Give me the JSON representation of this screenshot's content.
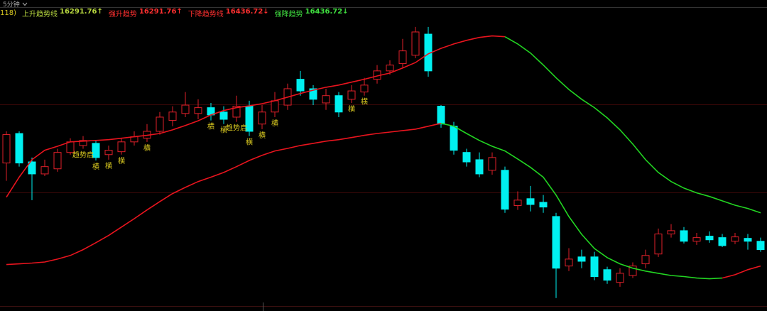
{
  "toolbar": {
    "period": "5分钟"
  },
  "chart_data": {
    "type": "candlestick",
    "indicator_param": "118)",
    "legend": [
      {
        "name": "上升趋势线",
        "value": 16291.76,
        "value_label": "16291.76↑",
        "color": "#b8d840"
      },
      {
        "name": "强升趋势",
        "value": 16291.76,
        "value_label": "16291.76↑",
        "color": "#ff3030"
      },
      {
        "name": "下降趋势线",
        "value": 16436.72,
        "value_label": "16436.72↓",
        "color": "#ff3030"
      },
      {
        "name": "强降趋势",
        "value": 16436.72,
        "value_label": "16436.72↓",
        "color": "#40e040"
      }
    ],
    "ylim": [
      16180,
      16970
    ],
    "up_color": "#e0202a",
    "down_color": "#00f0f0",
    "signal_color": "#d8c820",
    "open": [
      16571,
      16652,
      16574,
      16541,
      16555,
      16600,
      16619,
      16625,
      16594,
      16602,
      16629,
      16639,
      16658,
      16688,
      16707,
      16707,
      16723,
      16711,
      16697,
      16727,
      16678,
      16711,
      16730,
      16801,
      16775,
      16736,
      16756,
      16746,
      16766,
      16801,
      16824,
      16844,
      16867,
      16925,
      16727,
      16672,
      16600,
      16580,
      16551,
      16551,
      16454,
      16473,
      16463,
      16424,
      16288,
      16313,
      16313,
      16278,
      16243,
      16262,
      16294,
      16321,
      16376,
      16385,
      16356,
      16370,
      16366,
      16356,
      16364,
      16356
    ],
    "high": [
      16658,
      16658,
      16586,
      16580,
      16610,
      16639,
      16645,
      16633,
      16619,
      16639,
      16658,
      16678,
      16711,
      16727,
      16766,
      16746,
      16736,
      16727,
      16756,
      16742,
      16730,
      16766,
      16789,
      16824,
      16785,
      16775,
      16766,
      16785,
      16805,
      16840,
      16853,
      16912,
      16945,
      16945,
      16730,
      16684,
      16610,
      16600,
      16600,
      16561,
      16493,
      16508,
      16483,
      16434,
      16337,
      16333,
      16327,
      16286,
      16282,
      16298,
      16333,
      16391,
      16403,
      16395,
      16379,
      16383,
      16376,
      16379,
      16376,
      16366
    ],
    "low": [
      16522,
      16561,
      16469,
      16535,
      16547,
      16594,
      16610,
      16578,
      16580,
      16594,
      16619,
      16629,
      16649,
      16672,
      16697,
      16691,
      16688,
      16678,
      16684,
      16645,
      16664,
      16697,
      16717,
      16756,
      16730,
      16717,
      16697,
      16736,
      16756,
      16789,
      16814,
      16834,
      16859,
      16808,
      16668,
      16594,
      16561,
      16532,
      16539,
      16434,
      16442,
      16438,
      16434,
      16200,
      16274,
      16282,
      16249,
      16239,
      16231,
      16255,
      16282,
      16313,
      16366,
      16350,
      16346,
      16352,
      16340,
      16348,
      16333,
      16327
    ],
    "close": [
      16649,
      16571,
      16541,
      16561,
      16600,
      16629,
      16633,
      16586,
      16606,
      16629,
      16643,
      16658,
      16697,
      16711,
      16730,
      16723,
      16703,
      16691,
      16727,
      16658,
      16711,
      16742,
      16775,
      16769,
      16746,
      16756,
      16711,
      16769,
      16785,
      16824,
      16840,
      16879,
      16931,
      16824,
      16678,
      16606,
      16574,
      16541,
      16586,
      16444,
      16469,
      16457,
      16450,
      16282,
      16307,
      16301,
      16259,
      16249,
      16268,
      16288,
      16317,
      16376,
      16385,
      16356,
      16366,
      16360,
      16344,
      16368,
      16356,
      16333
    ],
    "signals": [
      null,
      null,
      null,
      null,
      null,
      null,
      "趋势启",
      "横",
      "横",
      "横",
      null,
      "横",
      null,
      null,
      null,
      null,
      "横",
      "横",
      "趋势启",
      "横",
      "横",
      "横",
      null,
      null,
      null,
      null,
      null,
      "横",
      "横",
      null,
      null,
      null,
      null,
      null,
      null,
      null,
      null,
      null,
      null,
      null,
      null,
      null,
      null,
      null,
      null,
      null,
      null,
      null,
      null,
      null,
      null,
      null,
      null,
      null,
      null,
      null,
      null,
      null,
      null,
      null
    ],
    "lines": [
      {
        "color": "#e8141e",
        "values": [
          16477,
          16532,
          16580,
          16606,
          16617,
          16629,
          16631,
          16633,
          16635,
          16639,
          16643,
          16647,
          16652,
          16662,
          16674,
          16687,
          16703,
          16715,
          16723,
          16728,
          16734,
          16742,
          16752,
          16762,
          16771,
          16779,
          16785,
          16793,
          16801,
          16810,
          16818,
          16832,
          16847,
          16871,
          16886,
          16898,
          16908,
          16916,
          16920,
          16918,
          null,
          null,
          null,
          null,
          null,
          null,
          null,
          null,
          null,
          null,
          null,
          null,
          null,
          null,
          null,
          null,
          null,
          null,
          null,
          null
        ]
      },
      {
        "color": "#22d422",
        "values": [
          null,
          null,
          null,
          null,
          null,
          null,
          null,
          null,
          null,
          null,
          null,
          null,
          null,
          null,
          null,
          null,
          null,
          null,
          null,
          null,
          null,
          null,
          null,
          null,
          null,
          null,
          null,
          null,
          null,
          null,
          null,
          null,
          null,
          null,
          null,
          null,
          null,
          null,
          null,
          16918,
          16898,
          16873,
          16840,
          16805,
          16773,
          16746,
          16723,
          16695,
          16662,
          16623,
          16580,
          16545,
          16520,
          16502,
          16489,
          16479,
          16467,
          16455,
          16446,
          16434
        ]
      },
      {
        "color": "#e8141e",
        "values": [
          16292,
          16294,
          16296,
          16299,
          16307,
          16317,
          16333,
          16352,
          16372,
          16395,
          16418,
          16442,
          16465,
          16487,
          16504,
          16520,
          16532,
          16545,
          16561,
          16578,
          16592,
          16604,
          16611,
          16619,
          16625,
          16631,
          16635,
          16641,
          16647,
          16652,
          16656,
          16660,
          16664,
          16672,
          16680,
          null,
          null,
          null,
          null,
          null,
          null,
          null,
          null,
          null,
          null,
          null,
          null,
          null,
          null,
          null,
          null,
          null,
          null,
          null,
          null,
          null,
          null,
          null,
          null,
          null
        ]
      },
      {
        "color": "#22d422",
        "values": [
          null,
          null,
          null,
          null,
          null,
          null,
          null,
          null,
          null,
          null,
          null,
          null,
          null,
          null,
          null,
          null,
          null,
          null,
          null,
          null,
          null,
          null,
          null,
          null,
          null,
          null,
          null,
          null,
          null,
          null,
          null,
          null,
          null,
          null,
          16680,
          16672,
          16652,
          16633,
          16617,
          16604,
          16582,
          16559,
          16532,
          16483,
          16424,
          16375,
          16336,
          16311,
          16294,
          16282,
          16274,
          16268,
          16262,
          16259,
          16255,
          16253,
          16255,
          null,
          null,
          null
        ]
      },
      {
        "color": "#e8141e",
        "values": [
          null,
          null,
          null,
          null,
          null,
          null,
          null,
          null,
          null,
          null,
          null,
          null,
          null,
          null,
          null,
          null,
          null,
          null,
          null,
          null,
          null,
          null,
          null,
          null,
          null,
          null,
          null,
          null,
          null,
          null,
          null,
          null,
          null,
          null,
          null,
          null,
          null,
          null,
          null,
          null,
          null,
          null,
          null,
          null,
          null,
          null,
          null,
          null,
          null,
          null,
          null,
          null,
          null,
          null,
          null,
          null,
          16255,
          16264,
          16278,
          16288
        ]
      }
    ]
  }
}
